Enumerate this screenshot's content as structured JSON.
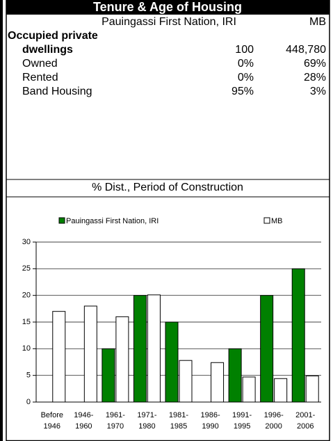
{
  "header": {
    "title": "Tenure & Age of Housing"
  },
  "table": {
    "columns": [
      "Pauingassi First Nation, IRI",
      "MB"
    ],
    "group_label": "Occupied private",
    "rows": [
      [
        "dwellings",
        "100",
        "448,780"
      ],
      [
        "Owned",
        "0%",
        "69%"
      ],
      [
        "Rented",
        "0%",
        "28%"
      ],
      [
        "Band Housing",
        "95%",
        "3%"
      ]
    ]
  },
  "chart_data": {
    "type": "bar",
    "title": "% Dist., Period of Construction",
    "categories": [
      "Before 1946",
      "1946- 1960",
      "1961- 1970",
      "1971- 1980",
      "1981- 1985",
      "1986- 1990",
      "1991- 1995",
      "1996- 2000",
      "2001- 2006"
    ],
    "series": [
      {
        "name": "Pauingassi First Nation, IRI",
        "color": "#008000",
        "values": [
          0,
          0,
          10,
          20,
          15,
          0,
          10,
          20,
          25
        ]
      },
      {
        "name": "MB",
        "color": "#ffffff",
        "values": [
          17,
          18,
          16,
          20.1,
          7.8,
          7.4,
          4.7,
          4.4,
          4.9
        ]
      }
    ],
    "ylim": [
      0,
      30
    ],
    "yticks": [
      0,
      5,
      10,
      15,
      20,
      25,
      30
    ],
    "grid": true
  }
}
